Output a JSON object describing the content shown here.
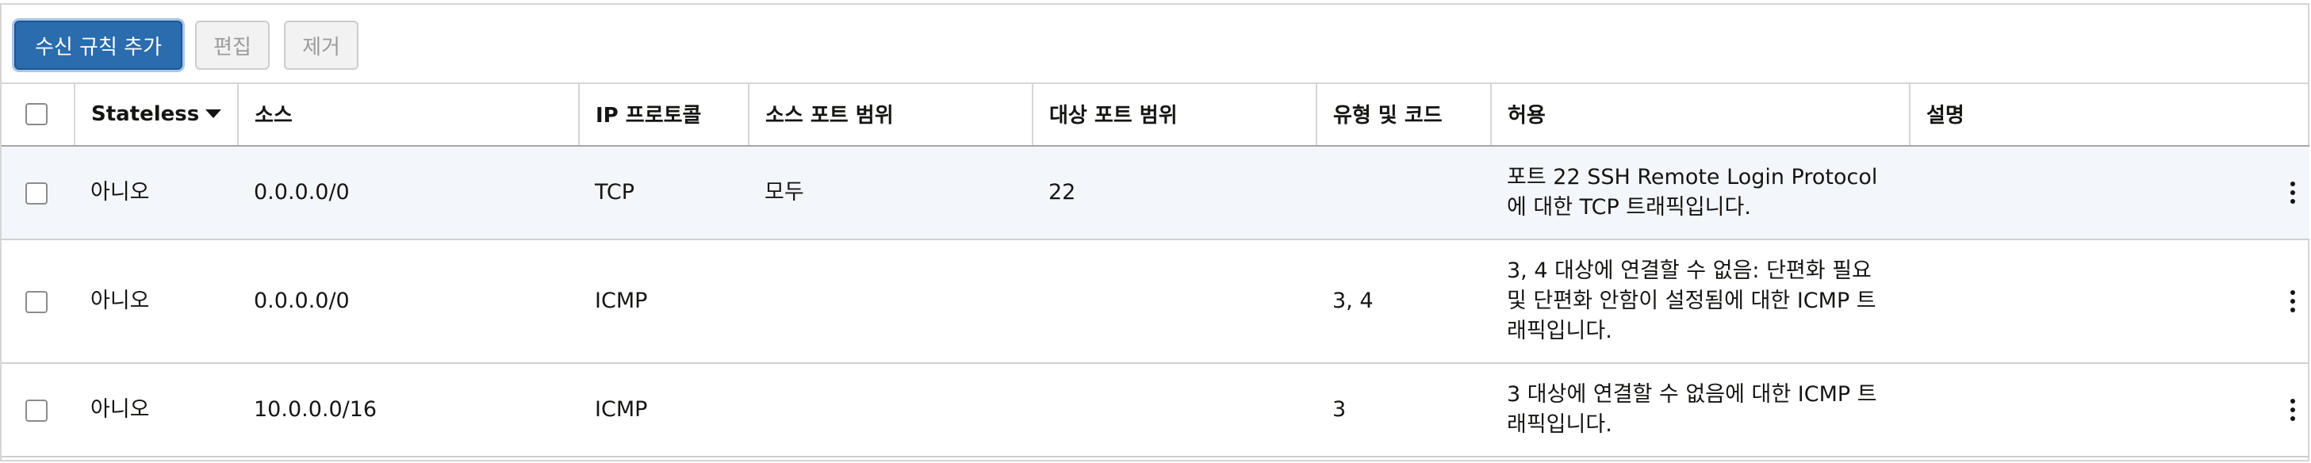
{
  "toolbar": {
    "add_rule_label": "수신 규칙 추가",
    "edit_label": "편집",
    "remove_label": "제거"
  },
  "table": {
    "headers": {
      "stateless": "Stateless",
      "source": "소스",
      "protocol": "IP 프로토콜",
      "source_port": "소스 포트 범위",
      "dest_port": "대상 포트 범위",
      "type_code": "유형 및 코드",
      "allow": "허용",
      "description": "설명"
    },
    "rows": [
      {
        "stateless": "아니오",
        "source": "0.0.0.0/0",
        "protocol": "TCP",
        "source_port": "모두",
        "dest_port": "22",
        "type_code": "",
        "allow": "포트 22 SSH Remote Login Protocol에 대한 TCP 트래픽입니다.",
        "description": ""
      },
      {
        "stateless": "아니오",
        "source": "0.0.0.0/0",
        "protocol": "ICMP",
        "source_port": "",
        "dest_port": "",
        "type_code": "3, 4",
        "allow": "3, 4 대상에 연결할 수 없음: 단편화 필요 및 단편화 안함이 설정됨에 대한 ICMP 트래픽입니다.",
        "description": ""
      },
      {
        "stateless": "아니오",
        "source": "10.0.0.0/16",
        "protocol": "ICMP",
        "source_port": "",
        "dest_port": "",
        "type_code": "3",
        "allow": "3 대상에 연결할 수 없음에 대한 ICMP 트래픽입니다.",
        "description": ""
      }
    ]
  },
  "colors": {
    "primary_button": "#2a6cad",
    "selected_row_bg": "#f3f7fb",
    "border": "#d6d6d6"
  }
}
